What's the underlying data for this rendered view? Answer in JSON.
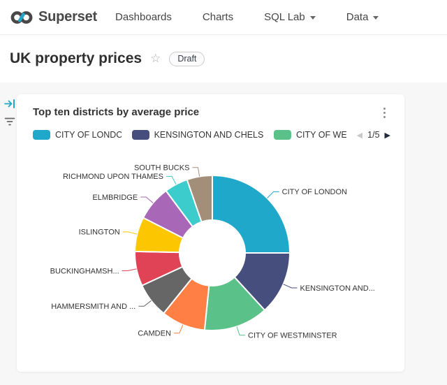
{
  "navbar": {
    "brand": "Superset",
    "items": [
      {
        "label": "Dashboards",
        "caret": false
      },
      {
        "label": "Charts",
        "caret": false
      },
      {
        "label": "SQL Lab",
        "caret": true
      },
      {
        "label": "Data",
        "caret": true
      }
    ]
  },
  "header": {
    "title": "UK property prices",
    "badge": "Draft"
  },
  "icons": {
    "star": "☆",
    "legend_prev": "◀",
    "legend_next": "▶"
  },
  "chart_card": {
    "title": "Top ten districts by average price",
    "legend": {
      "items": [
        {
          "label": "CITY OF LONDON",
          "color": "#1FA8C9"
        },
        {
          "label": "KENSINGTON AND CHELSEA",
          "color": "#454E7C"
        },
        {
          "label": "CITY OF WES",
          "color": "#5AC189"
        }
      ],
      "page": "1/5"
    }
  },
  "chart_data": {
    "type": "pie",
    "title": "Top ten districts by average price",
    "donut": true,
    "legend_position": "top",
    "value_unit": "share of total, % (estimated from arc angles)",
    "series": [
      {
        "name": "CITY OF LONDON",
        "value": 25.0,
        "color": "#1FA8C9",
        "label": "CITY OF LONDON"
      },
      {
        "name": "KENSINGTON AND CHELSEA",
        "value": 13.2,
        "color": "#454E7C",
        "label": "KENSINGTON AND..."
      },
      {
        "name": "CITY OF WESTMINSTER",
        "value": 13.4,
        "color": "#5AC189",
        "label": "CITY OF WESTMINSTER"
      },
      {
        "name": "CAMDEN",
        "value": 9.2,
        "color": "#FF7F44",
        "label": "CAMDEN"
      },
      {
        "name": "HAMMERSMITH AND ...",
        "value": 7.3,
        "color": "#666666",
        "label": "HAMMERSMITH AND ..."
      },
      {
        "name": "BUCKINGHAMSH...",
        "value": 7.2,
        "color": "#E04355",
        "label": "BUCKINGHAMSH..."
      },
      {
        "name": "ISLINGTON",
        "value": 7.2,
        "color": "#FCC700",
        "label": "ISLINGTON"
      },
      {
        "name": "ELMBRIDGE",
        "value": 7.3,
        "color": "#A868B7",
        "label": "ELMBRIDGE"
      },
      {
        "name": "RICHMOND UPON THAMES",
        "value": 4.9,
        "color": "#3CCCCB",
        "label": "RICHMOND UPON THAMES"
      },
      {
        "name": "SOUTH BUCKS",
        "value": 5.3,
        "color": "#A38F79",
        "label": "SOUTH BUCKS"
      }
    ]
  }
}
